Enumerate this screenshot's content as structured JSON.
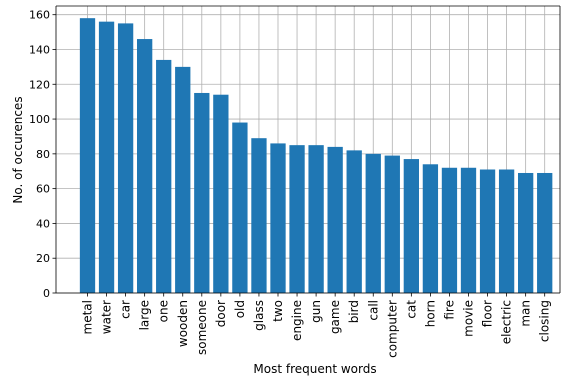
{
  "chart_data": {
    "type": "bar",
    "title": "",
    "xlabel": "Most frequent words",
    "ylabel": "No. of occurences",
    "ylim": [
      0,
      165
    ],
    "yticks": [
      0,
      20,
      40,
      60,
      80,
      100,
      120,
      140,
      160
    ],
    "grid": true,
    "bar_color": "#1f77b4",
    "categories": [
      "metal",
      "water",
      "car",
      "large",
      "one",
      "wooden",
      "someone",
      "door",
      "old",
      "glass",
      "two",
      "engine",
      "gun",
      "game",
      "bird",
      "call",
      "computer",
      "cat",
      "horn",
      "fire",
      "movie",
      "floor",
      "electric",
      "man",
      "closing"
    ],
    "values": [
      158,
      156,
      155,
      146,
      134,
      130,
      115,
      114,
      98,
      89,
      86,
      85,
      85,
      84,
      82,
      80,
      79,
      77,
      74,
      72,
      72,
      71,
      71,
      69,
      69
    ]
  }
}
